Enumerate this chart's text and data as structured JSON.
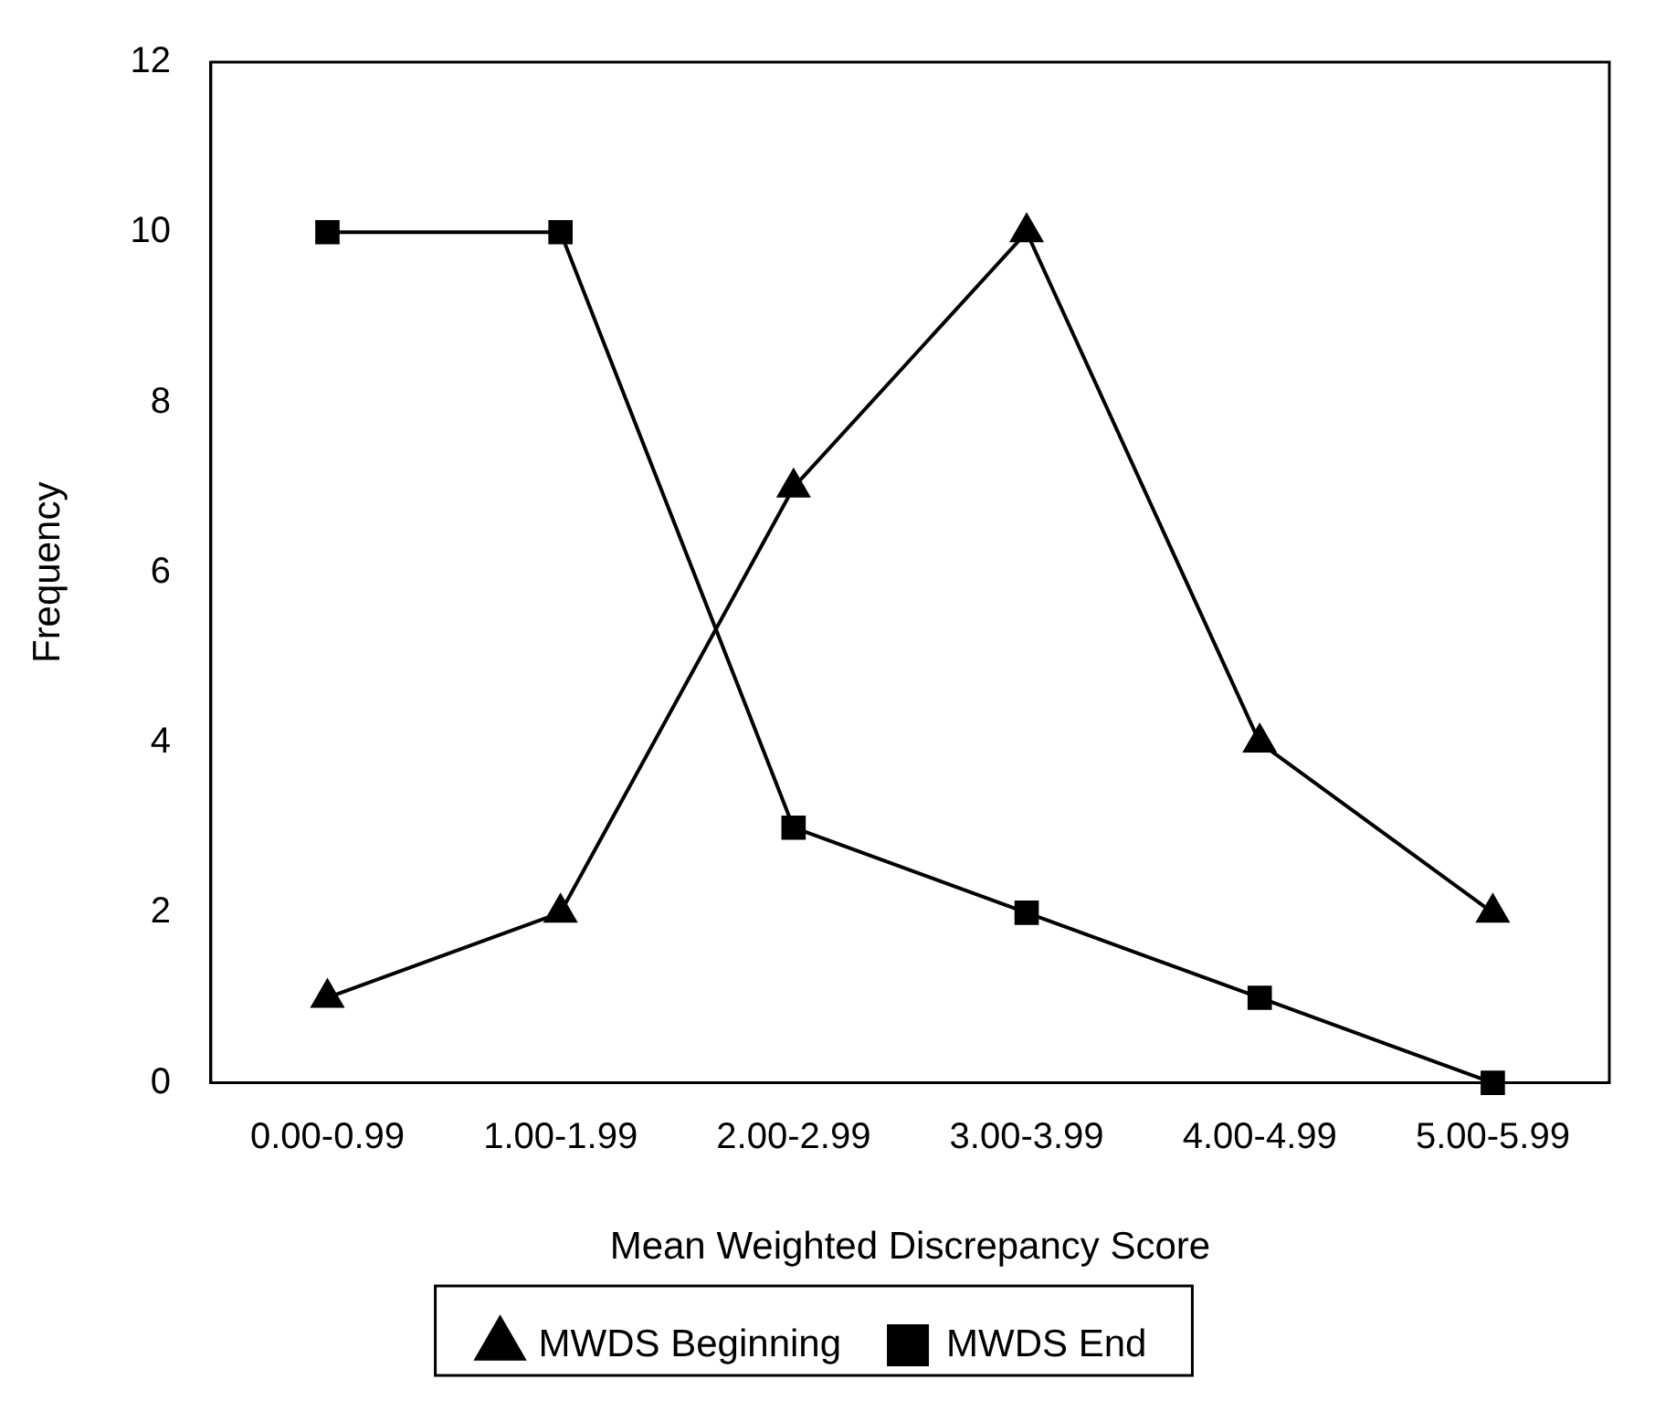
{
  "chart_data": {
    "type": "line",
    "xlabel": "Mean Weighted Discrepancy Score",
    "ylabel": "Frequency",
    "categories": [
      "0.00-0.99",
      "1.00-1.99",
      "2.00-2.99",
      "3.00-3.99",
      "4.00-4.99",
      "5.00-5.99"
    ],
    "series": [
      {
        "name": "MWDS Beginning",
        "color": "#000000",
        "marker": "triangle",
        "values": [
          1,
          2,
          7,
          10,
          4,
          2
        ]
      },
      {
        "name": "MWDS End",
        "color": "#000000",
        "marker": "square",
        "values": [
          10,
          10,
          3,
          2,
          1,
          0
        ]
      }
    ],
    "ylim": [
      0,
      12
    ],
    "yticks": [
      0,
      2,
      4,
      6,
      8,
      10,
      12
    ],
    "grid": false,
    "legend": "bottom",
    "line_style": "solid"
  }
}
